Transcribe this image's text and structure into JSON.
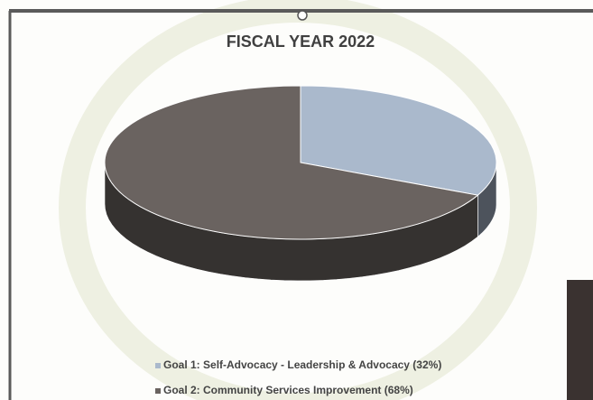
{
  "chart_data": {
    "type": "pie",
    "title": "FISCAL YEAR 2022",
    "categories": [
      "Goal 1: Self-Advocacy - Leadership & Advocacy (32%)",
      "Goal 2: Community Services Improvement (68%)"
    ],
    "values": [
      32,
      68
    ],
    "colors": [
      "#aab9cc",
      "#6a6360"
    ],
    "legend": "bottom"
  }
}
